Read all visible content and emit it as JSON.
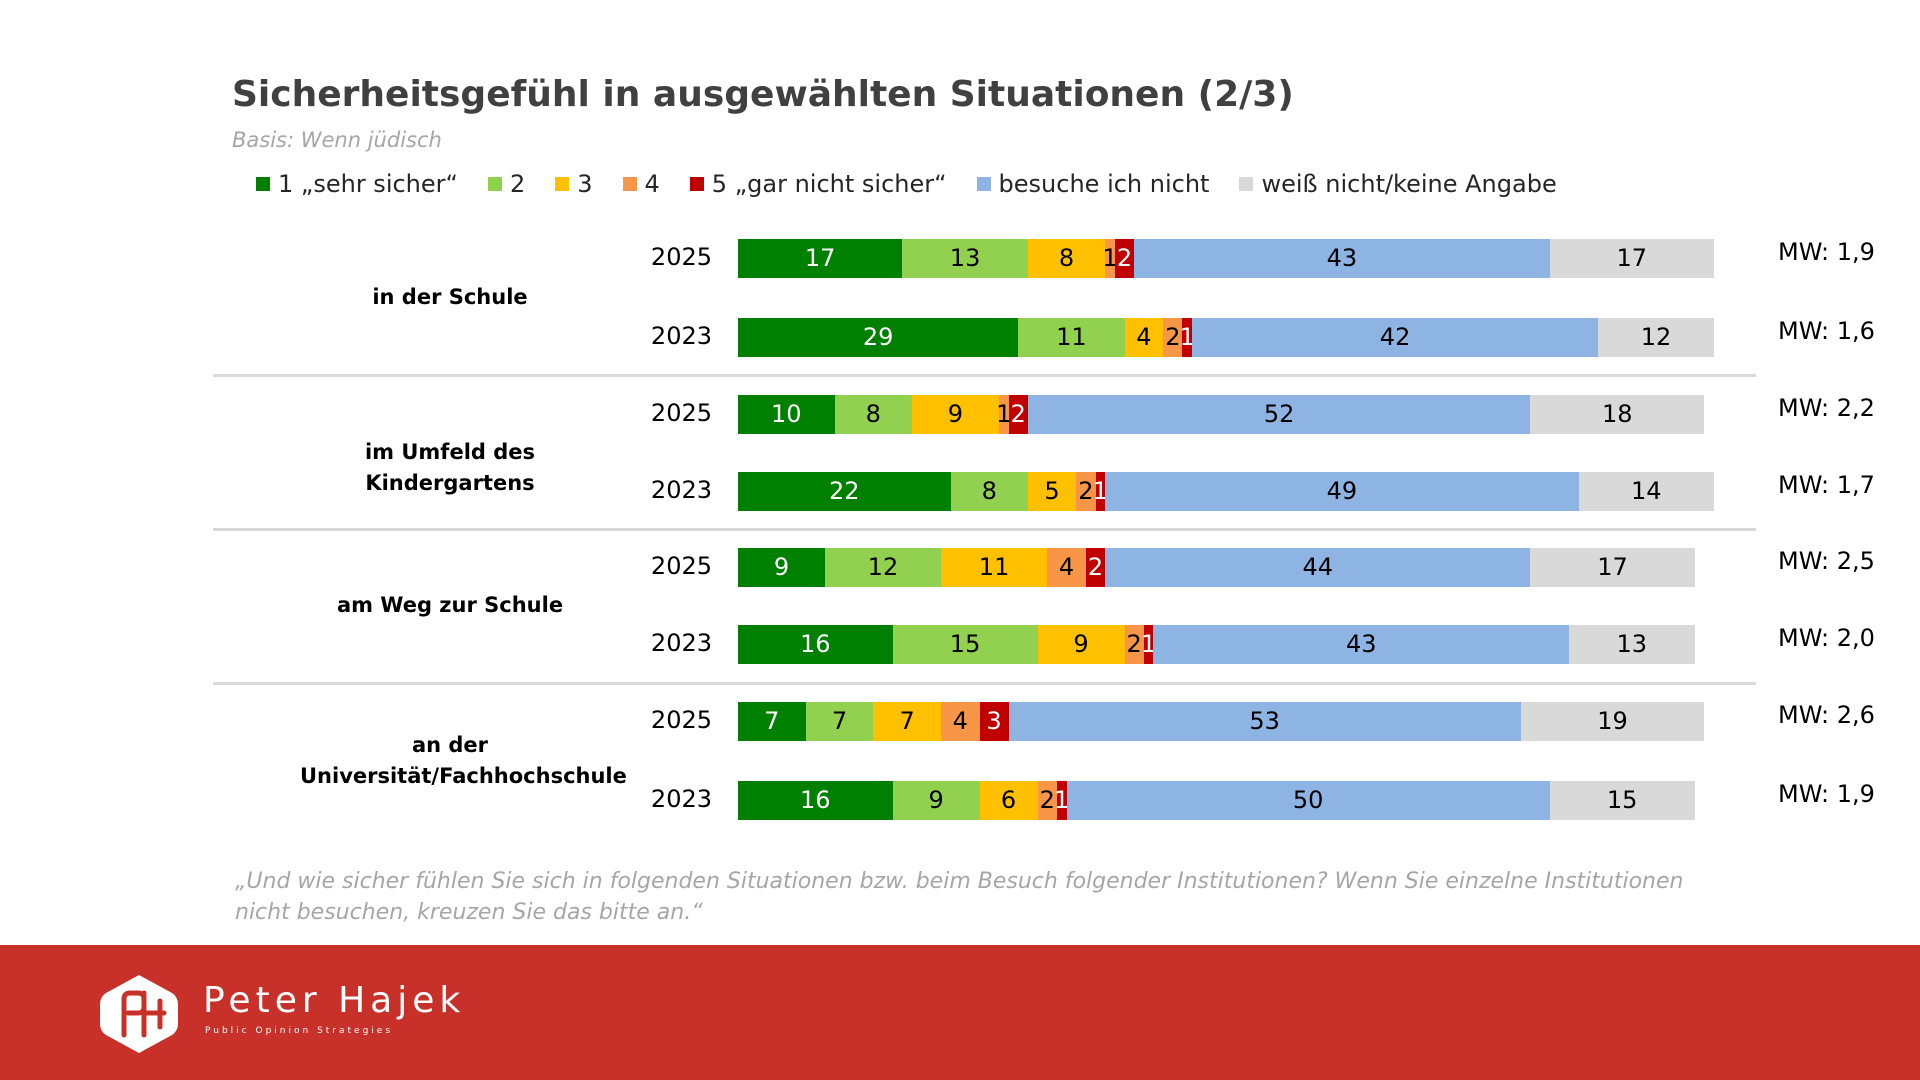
{
  "chart_data": {
    "type": "bar",
    "orientation": "horizontal-stacked",
    "title": "Sicherheitsgefühl in ausgewählten Situationen (2/3)",
    "subtitle": "Basis: Wenn jüdisch",
    "legend": [
      {
        "label": "1 „sehr sicher“",
        "color": "#008000",
        "text_color": "#ffffff"
      },
      {
        "label": "2",
        "color": "#92d050",
        "text_color": "#000000"
      },
      {
        "label": "3",
        "color": "#ffc000",
        "text_color": "#000000"
      },
      {
        "label": "4",
        "color": "#f79646",
        "text_color": "#000000"
      },
      {
        "label": "5 „gar nicht sicher“",
        "color": "#c00000",
        "text_color": "#ffffff"
      },
      {
        "label": "besuche ich nicht",
        "color": "#8db4e2",
        "text_color": "#000000"
      },
      {
        "label": "weiß nicht/keine Angabe",
        "color": "#d9d9d9",
        "text_color": "#000000"
      }
    ],
    "groups": [
      {
        "label": "in der Schule",
        "rows": [
          {
            "year": "2025",
            "values": [
              17,
              13,
              8,
              1,
              2,
              43,
              17
            ],
            "mw": "MW: 1,9"
          },
          {
            "year": "2023",
            "values": [
              29,
              11,
              4,
              2,
              1,
              42,
              12
            ],
            "mw": "MW: 1,6"
          }
        ]
      },
      {
        "label": "im Umfeld des Kindergartens",
        "rows": [
          {
            "year": "2025",
            "values": [
              10,
              8,
              9,
              1,
              2,
              52,
              18
            ],
            "mw": "MW: 2,2"
          },
          {
            "year": "2023",
            "values": [
              22,
              8,
              5,
              2,
              1,
              49,
              14
            ],
            "mw": "MW: 1,7"
          }
        ]
      },
      {
        "label": "am Weg zur Schule",
        "rows": [
          {
            "year": "2025",
            "values": [
              9,
              12,
              11,
              4,
              2,
              44,
              17
            ],
            "mw": "MW: 2,5"
          },
          {
            "year": "2023",
            "values": [
              16,
              15,
              9,
              2,
              1,
              43,
              13
            ],
            "mw": "MW: 2,0"
          }
        ]
      },
      {
        "label": "an der\nUniversität/Fachhochschule",
        "rows": [
          {
            "year": "2025",
            "values": [
              7,
              7,
              7,
              4,
              3,
              53,
              19
            ],
            "mw": "MW: 2,6"
          },
          {
            "year": "2023",
            "values": [
              16,
              9,
              6,
              2,
              1,
              50,
              15
            ],
            "mw": "MW: 1,9"
          }
        ]
      }
    ],
    "xlim": [
      0,
      101
    ]
  },
  "question": "„Und wie sicher fühlen Sie sich in folgenden Situationen bzw. beim Besuch folgender Institutionen? Wenn Sie einzelne Institutionen nicht besuchen, kreuzen Sie das bitte an.“",
  "footer": {
    "brand_name": "Peter Hajek",
    "tagline": "Public Opinion Strategies",
    "background_color": "#c8312a"
  }
}
